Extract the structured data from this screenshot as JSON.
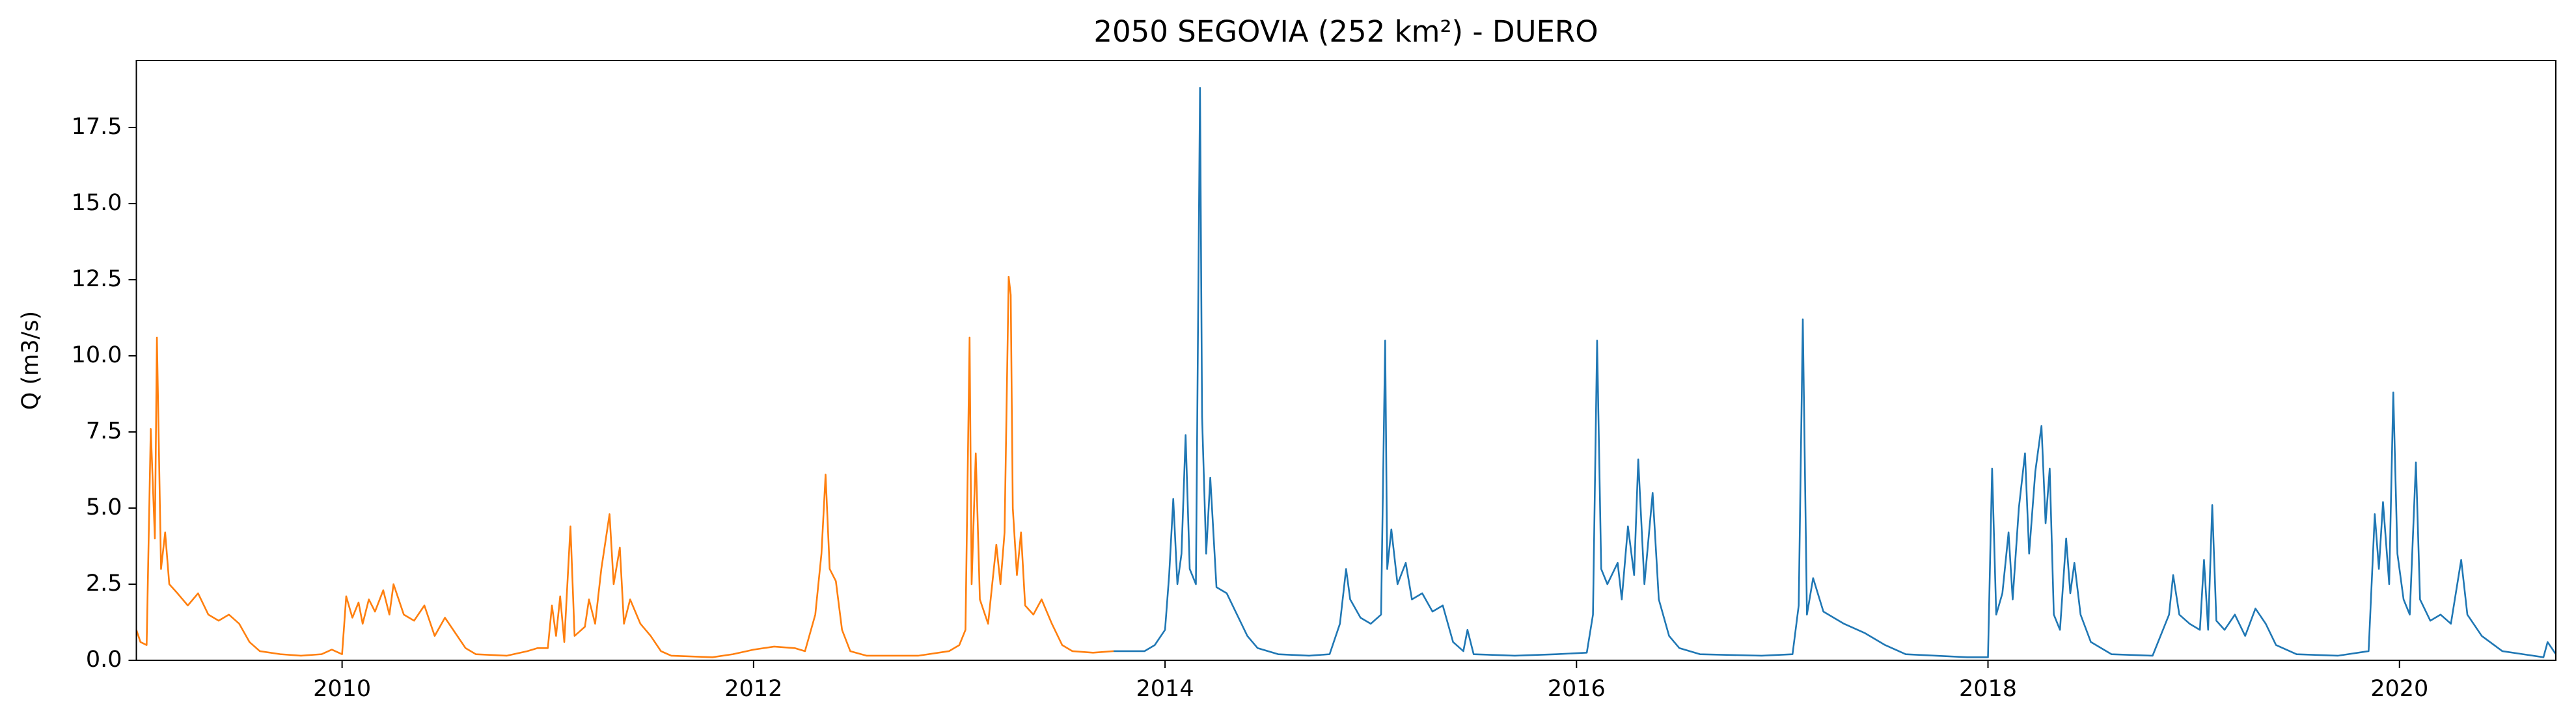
{
  "chart_data": {
    "type": "line",
    "title": "2050 SEGOVIA (252 km²) - DUERO",
    "y_label": "Q (m3/s)",
    "xlim": [
      2009.0,
      2020.76
    ],
    "xticks": [
      2010,
      2012,
      2014,
      2016,
      2018,
      2020
    ],
    "ylim": [
      0,
      19.7
    ],
    "yticks": [
      {
        "value": 0,
        "label": "0.0"
      },
      {
        "value": 2.5,
        "label": "2.5"
      },
      {
        "value": 5,
        "label": "5.0"
      },
      {
        "value": 7.5,
        "label": "7.5"
      },
      {
        "value": 10,
        "label": "10.0"
      },
      {
        "value": 12.5,
        "label": "12.5"
      },
      {
        "value": 15,
        "label": "15.0"
      },
      {
        "value": 17.5,
        "label": "17.5"
      }
    ],
    "series": [
      {
        "color": "#ff7f0e",
        "x": [
          2009.0,
          2009.02,
          2009.05,
          2009.07,
          2009.09,
          2009.1,
          2009.12,
          2009.14,
          2009.16,
          2009.2,
          2009.25,
          2009.3,
          2009.35,
          2009.4,
          2009.45,
          2009.5,
          2009.55,
          2009.6,
          2009.7,
          2009.8,
          2009.9,
          2009.95,
          2010.0,
          2010.02,
          2010.05,
          2010.08,
          2010.1,
          2010.13,
          2010.16,
          2010.2,
          2010.23,
          2010.25,
          2010.3,
          2010.35,
          2010.4,
          2010.45,
          2010.5,
          2010.55,
          2010.6,
          2010.65,
          2010.8,
          2010.9,
          2010.95,
          2011.0,
          2011.02,
          2011.04,
          2011.06,
          2011.08,
          2011.11,
          2011.13,
          2011.18,
          2011.2,
          2011.23,
          2011.26,
          2011.3,
          2011.32,
          2011.35,
          2011.37,
          2011.4,
          2011.45,
          2011.5,
          2011.55,
          2011.6,
          2011.8,
          2011.9,
          2012.0,
          2012.1,
          2012.2,
          2012.25,
          2012.3,
          2012.33,
          2012.35,
          2012.37,
          2012.4,
          2012.43,
          2012.47,
          2012.55,
          2012.8,
          2012.95,
          2013.0,
          2013.03,
          2013.05,
          2013.06,
          2013.08,
          2013.1,
          2013.14,
          2013.18,
          2013.2,
          2013.22,
          2013.24,
          2013.25,
          2013.26,
          2013.28,
          2013.3,
          2013.32,
          2013.36,
          2013.4,
          2013.45,
          2013.5,
          2013.55,
          2013.65,
          2013.75
        ],
        "values": [
          1.0,
          0.6,
          0.5,
          7.6,
          4.0,
          10.6,
          3.0,
          4.2,
          2.5,
          2.2,
          1.8,
          2.2,
          1.5,
          1.3,
          1.5,
          1.2,
          0.6,
          0.3,
          0.2,
          0.15,
          0.2,
          0.35,
          0.2,
          2.1,
          1.4,
          1.9,
          1.2,
          2.0,
          1.6,
          2.3,
          1.5,
          2.5,
          1.5,
          1.3,
          1.8,
          0.8,
          1.4,
          0.9,
          0.4,
          0.2,
          0.15,
          0.3,
          0.4,
          0.4,
          1.8,
          0.8,
          2.1,
          0.6,
          4.4,
          0.8,
          1.1,
          2.0,
          1.2,
          3.0,
          4.8,
          2.5,
          3.7,
          1.2,
          2.0,
          1.2,
          0.8,
          0.3,
          0.15,
          0.1,
          0.2,
          0.35,
          0.45,
          0.4,
          0.3,
          1.5,
          3.5,
          6.1,
          3.0,
          2.6,
          1.0,
          0.3,
          0.15,
          0.15,
          0.3,
          0.5,
          1.0,
          10.6,
          2.5,
          6.8,
          2.0,
          1.2,
          3.8,
          2.5,
          4.2,
          12.6,
          12.0,
          5.0,
          2.8,
          4.2,
          1.8,
          1.5,
          2.0,
          1.2,
          0.5,
          0.3,
          0.25,
          0.3
        ]
      },
      {
        "color": "#1f77b4",
        "x": [
          2013.75,
          2013.9,
          2013.95,
          2014.0,
          2014.02,
          2014.04,
          2014.06,
          2014.08,
          2014.1,
          2014.12,
          2014.15,
          2014.17,
          2014.18,
          2014.2,
          2014.22,
          2014.25,
          2014.3,
          2014.35,
          2014.4,
          2014.45,
          2014.55,
          2014.7,
          2014.8,
          2014.85,
          2014.88,
          2014.9,
          2014.95,
          2015.0,
          2015.05,
          2015.07,
          2015.08,
          2015.1,
          2015.13,
          2015.17,
          2015.2,
          2015.25,
          2015.3,
          2015.35,
          2015.4,
          2015.45,
          2015.47,
          2015.5,
          2015.7,
          2015.9,
          2016.05,
          2016.08,
          2016.1,
          2016.12,
          2016.15,
          2016.2,
          2016.22,
          2016.25,
          2016.28,
          2016.3,
          2016.33,
          2016.37,
          2016.4,
          2016.45,
          2016.5,
          2016.6,
          2016.9,
          2017.05,
          2017.08,
          2017.1,
          2017.12,
          2017.15,
          2017.2,
          2017.3,
          2017.4,
          2017.5,
          2017.6,
          2017.9,
          2018.0,
          2018.02,
          2018.04,
          2018.07,
          2018.1,
          2018.12,
          2018.15,
          2018.18,
          2018.2,
          2018.23,
          2018.26,
          2018.28,
          2018.3,
          2018.32,
          2018.35,
          2018.38,
          2018.4,
          2018.42,
          2018.45,
          2018.5,
          2018.6,
          2018.8,
          2018.88,
          2018.9,
          2018.93,
          2018.98,
          2019.03,
          2019.05,
          2019.07,
          2019.09,
          2019.11,
          2019.15,
          2019.2,
          2019.25,
          2019.3,
          2019.35,
          2019.4,
          2019.5,
          2019.7,
          2019.85,
          2019.88,
          2019.9,
          2019.92,
          2019.95,
          2019.97,
          2019.99,
          2020.02,
          2020.05,
          2020.08,
          2020.1,
          2020.15,
          2020.2,
          2020.25,
          2020.3,
          2020.33,
          2020.4,
          2020.5,
          2020.6,
          2020.7,
          2020.72,
          2020.76
        ],
        "values": [
          0.3,
          0.3,
          0.5,
          1.0,
          2.8,
          5.3,
          2.5,
          3.5,
          7.4,
          3.0,
          2.5,
          18.8,
          8.0,
          3.5,
          6.0,
          2.4,
          2.2,
          1.5,
          0.8,
          0.4,
          0.2,
          0.15,
          0.2,
          1.2,
          3.0,
          2.0,
          1.4,
          1.2,
          1.5,
          10.5,
          3.0,
          4.3,
          2.5,
          3.2,
          2.0,
          2.2,
          1.6,
          1.8,
          0.6,
          0.3,
          1.0,
          0.2,
          0.15,
          0.2,
          0.25,
          1.5,
          10.5,
          3.0,
          2.5,
          3.2,
          2.0,
          4.4,
          2.8,
          6.6,
          2.5,
          5.5,
          2.0,
          0.8,
          0.4,
          0.2,
          0.15,
          0.2,
          1.8,
          11.2,
          1.5,
          2.7,
          1.6,
          1.2,
          0.9,
          0.5,
          0.2,
          0.1,
          0.1,
          6.3,
          1.5,
          2.2,
          4.2,
          2.0,
          5.0,
          6.8,
          3.5,
          6.2,
          7.7,
          4.5,
          6.3,
          1.5,
          1.0,
          4.0,
          2.2,
          3.2,
          1.5,
          0.6,
          0.2,
          0.15,
          1.5,
          2.8,
          1.5,
          1.2,
          1.0,
          3.3,
          1.0,
          5.1,
          1.3,
          1.0,
          1.5,
          0.8,
          1.7,
          1.2,
          0.5,
          0.2,
          0.15,
          0.3,
          4.8,
          3.0,
          5.2,
          2.5,
          8.8,
          3.5,
          2.0,
          1.5,
          6.5,
          2.0,
          1.3,
          1.5,
          1.2,
          3.3,
          1.5,
          0.8,
          0.3,
          0.2,
          0.1,
          0.6,
          0.2
        ]
      }
    ]
  }
}
